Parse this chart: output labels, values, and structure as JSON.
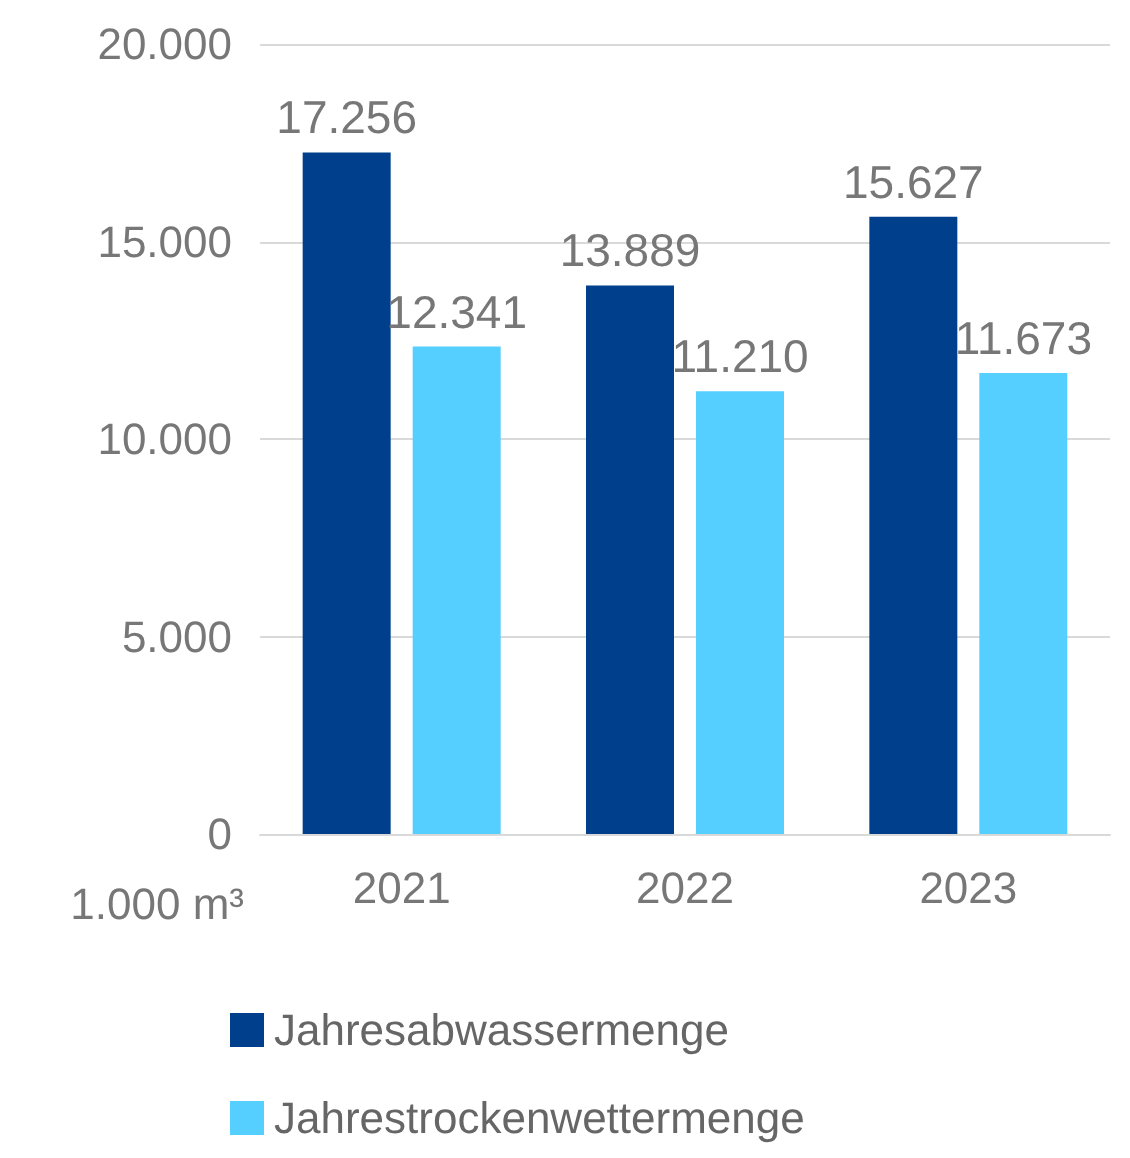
{
  "chart_data": {
    "type": "bar",
    "ylabel": "1.000 m³",
    "categories": [
      "2021",
      "2022",
      "2023"
    ],
    "series": [
      {
        "name": "Jahresabwassermenge",
        "color": "#003f8c",
        "values": [
          17256,
          13889,
          15627
        ],
        "value_labels": [
          "17.256",
          "13.889",
          "15.627"
        ]
      },
      {
        "name": "Jahrestrockenwettermenge",
        "color": "#55cfff",
        "values": [
          12341,
          11210,
          11673
        ],
        "value_labels": [
          "12.341",
          "11.210",
          "11.673"
        ]
      }
    ],
    "ylim": [
      0,
      20000
    ],
    "yticks": [
      {
        "value": 0,
        "label": "0"
      },
      {
        "value": 5000,
        "label": "5.000"
      },
      {
        "value": 10000,
        "label": "10.000"
      },
      {
        "value": 15000,
        "label": "15.000"
      },
      {
        "value": 20000,
        "label": "20.000"
      }
    ],
    "grid": "y",
    "legend": "bottom"
  }
}
